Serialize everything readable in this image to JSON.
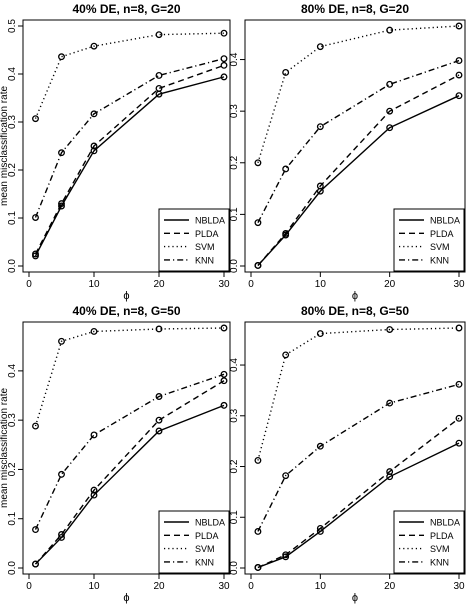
{
  "figure": {
    "x_label": "ϕ",
    "y_label": "mean misclassification rate"
  },
  "chart_data": [
    {
      "type": "line",
      "title": "40% DE, n=8, G=20",
      "xlabel": "ϕ",
      "ylabel": "mean misclassification rate",
      "x": [
        1,
        5,
        10,
        20,
        30
      ],
      "xticks": [
        0,
        10,
        20,
        30
      ],
      "yticks": [
        0.0,
        0.1,
        0.2,
        0.3,
        0.4,
        0.5
      ],
      "xlim": [
        0,
        30
      ],
      "ylim": [
        0,
        0.5
      ],
      "legend": "bottom-right",
      "grid": false,
      "series": [
        {
          "name": "NBLDA",
          "style": "solid",
          "values": [
            0.021,
            0.125,
            0.24,
            0.358,
            0.394
          ]
        },
        {
          "name": "PLDA",
          "style": "dashed",
          "values": [
            0.025,
            0.13,
            0.25,
            0.37,
            0.418
          ]
        },
        {
          "name": "SVM",
          "style": "dotted",
          "values": [
            0.307,
            0.436,
            0.458,
            0.482,
            0.485
          ]
        },
        {
          "name": "KNN",
          "style": "dotdash",
          "values": [
            0.101,
            0.236,
            0.317,
            0.397,
            0.432
          ]
        }
      ]
    },
    {
      "type": "line",
      "title": "80% DE, n=8, G=20",
      "xlabel": "ϕ",
      "ylabel": "",
      "x": [
        1,
        5,
        10,
        20,
        30
      ],
      "xticks": [
        0,
        10,
        20,
        30
      ],
      "yticks": [
        0.0,
        0.1,
        0.2,
        0.3,
        0.4
      ],
      "xlim": [
        0,
        30
      ],
      "ylim": [
        0,
        0.465
      ],
      "legend": "bottom-right",
      "grid": false,
      "series": [
        {
          "name": "NBLDA",
          "style": "solid",
          "values": [
            0.001,
            0.06,
            0.145,
            0.268,
            0.33
          ]
        },
        {
          "name": "PLDA",
          "style": "dashed",
          "values": [
            0.001,
            0.063,
            0.155,
            0.3,
            0.37
          ]
        },
        {
          "name": "SVM",
          "style": "dotted",
          "values": [
            0.2,
            0.375,
            0.425,
            0.457,
            0.465
          ]
        },
        {
          "name": "KNN",
          "style": "dotdash",
          "values": [
            0.084,
            0.188,
            0.27,
            0.352,
            0.398
          ]
        }
      ]
    },
    {
      "type": "line",
      "title": "40% DE, n=8, G=50",
      "xlabel": "ϕ",
      "ylabel": "mean misclassification rate",
      "x": [
        1,
        5,
        10,
        20,
        30
      ],
      "xticks": [
        0,
        10,
        20,
        30
      ],
      "yticks": [
        0.0,
        0.1,
        0.2,
        0.3,
        0.4
      ],
      "xlim": [
        0,
        30
      ],
      "ylim": [
        0,
        0.487
      ],
      "legend": "bottom-right",
      "grid": false,
      "series": [
        {
          "name": "NBLDA",
          "style": "solid",
          "values": [
            0.008,
            0.062,
            0.148,
            0.278,
            0.33
          ]
        },
        {
          "name": "PLDA",
          "style": "dashed",
          "values": [
            0.008,
            0.068,
            0.158,
            0.3,
            0.38
          ]
        },
        {
          "name": "SVM",
          "style": "dotted",
          "values": [
            0.288,
            0.46,
            0.48,
            0.485,
            0.487
          ]
        },
        {
          "name": "KNN",
          "style": "dotdash",
          "values": [
            0.078,
            0.19,
            0.27,
            0.348,
            0.393
          ]
        }
      ]
    },
    {
      "type": "line",
      "title": "80% DE, n=8, G=50",
      "xlabel": "ϕ",
      "ylabel": "",
      "x": [
        1,
        5,
        10,
        20,
        30
      ],
      "xticks": [
        0,
        10,
        20,
        30
      ],
      "yticks": [
        0.0,
        0.1,
        0.2,
        0.3,
        0.4
      ],
      "xlim": [
        0,
        30
      ],
      "ylim": [
        0,
        0.473
      ],
      "legend": "bottom-right",
      "grid": false,
      "series": [
        {
          "name": "NBLDA",
          "style": "solid",
          "values": [
            0.001,
            0.022,
            0.072,
            0.18,
            0.246
          ]
        },
        {
          "name": "PLDA",
          "style": "dashed",
          "values": [
            0.001,
            0.026,
            0.078,
            0.19,
            0.295
          ]
        },
        {
          "name": "SVM",
          "style": "dotted",
          "values": [
            0.212,
            0.42,
            0.462,
            0.47,
            0.473
          ]
        },
        {
          "name": "KNN",
          "style": "dotdash",
          "values": [
            0.072,
            0.182,
            0.24,
            0.325,
            0.362
          ]
        }
      ]
    }
  ]
}
